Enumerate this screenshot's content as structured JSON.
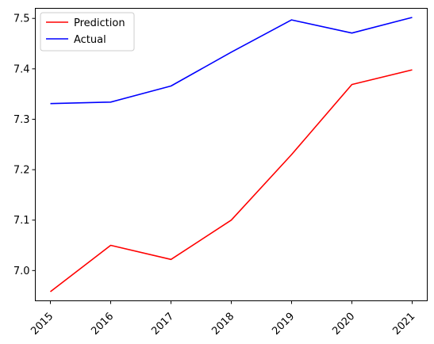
{
  "chart_data": {
    "type": "line",
    "title": "",
    "xlabel": "",
    "ylabel": "",
    "x": [
      "2015",
      "2016",
      "2017",
      "2018",
      "2019",
      "2020",
      "2021"
    ],
    "ylim": [
      6.94,
      7.52
    ],
    "y_ticks": [
      "7.0",
      "7.1",
      "7.2",
      "7.3",
      "7.4",
      "7.5"
    ],
    "grid": false,
    "legend": "upper-left",
    "series": [
      {
        "name": "Prediction",
        "color": "#ff0000",
        "values": [
          6.958,
          7.05,
          7.022,
          7.1,
          7.23,
          7.369,
          7.398
        ]
      },
      {
        "name": "Actual",
        "color": "#0000ff",
        "values": [
          7.331,
          7.334,
          7.366,
          7.433,
          7.497,
          7.471,
          7.502
        ]
      }
    ]
  }
}
